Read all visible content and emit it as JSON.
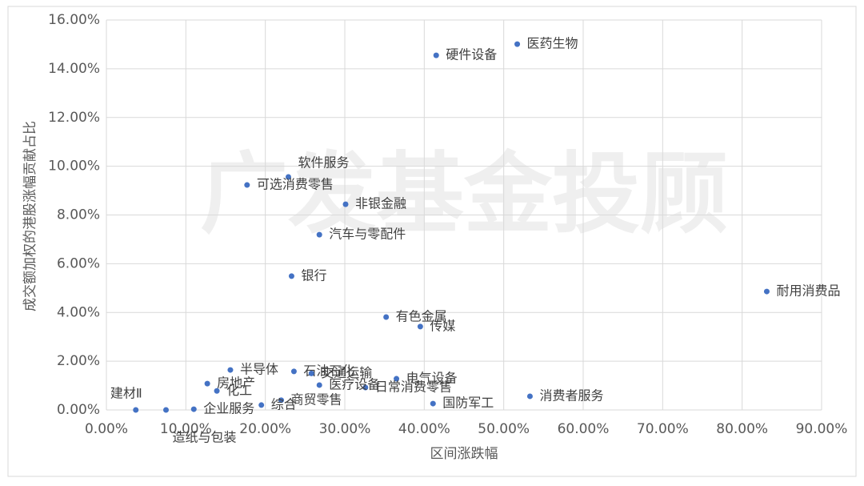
{
  "chart_data": {
    "type": "scatter",
    "watermark": "广发基金投顾",
    "x_label": "区间涨跌幅",
    "y_label": "成交额加权的港股涨幅贡献占比",
    "color": "#4472c4",
    "grid": true,
    "xlim": [
      0,
      90
    ],
    "ylim": [
      0,
      16
    ],
    "xticks": [
      {
        "value": 0,
        "label": "0.00%"
      },
      {
        "value": 10,
        "label": "10.00%"
      },
      {
        "value": 20,
        "label": "20.00%"
      },
      {
        "value": 30,
        "label": "30.00%"
      },
      {
        "value": 40,
        "label": "40.00%"
      },
      {
        "value": 50,
        "label": "50.00%"
      },
      {
        "value": 60,
        "label": "60.00%"
      },
      {
        "value": 70,
        "label": "70.00%"
      },
      {
        "value": 80,
        "label": "80.00%"
      },
      {
        "value": 90,
        "label": "90.00%"
      }
    ],
    "yticks": [
      {
        "value": 0,
        "label": "0.00%"
      },
      {
        "value": 2,
        "label": "2.00%"
      },
      {
        "value": 4,
        "label": "4.00%"
      },
      {
        "value": 6,
        "label": "6.00%"
      },
      {
        "value": 8,
        "label": "8.00%"
      },
      {
        "value": 10,
        "label": "10.00%"
      },
      {
        "value": 12,
        "label": "12.00%"
      },
      {
        "value": 14,
        "label": "14.00%"
      },
      {
        "value": 16,
        "label": "16.00%"
      }
    ],
    "labels": [
      "医药生物",
      "硬件设备",
      "软件服务",
      "可选消费零售",
      "非银金融",
      "汽车与零配件",
      "银行",
      "耐用消费品",
      "有色金属",
      "传媒",
      "半导体",
      "石油石化",
      "电气设备",
      "消费者服务",
      "国防军工",
      "房地产",
      "建材Ⅱ",
      "造纸与包装",
      "企业服务",
      "日常消费零售",
      "医疗设备",
      "交通运输",
      "化工",
      "商贸零售",
      "综合"
    ],
    "x": [
      51.7,
      41.5,
      22.9,
      17.7,
      30.1,
      26.8,
      23.3,
      83.1,
      35.2,
      39.5,
      15.6,
      23.6,
      36.5,
      53.3,
      41.1,
      12.7,
      3.7,
      7.5,
      11.0,
      32.6,
      26.8,
      25.8,
      13.9,
      22.0,
      19.5
    ],
    "y": [
      15.01,
      14.55,
      9.56,
      9.23,
      8.44,
      7.19,
      5.49,
      4.86,
      3.81,
      3.42,
      1.64,
      1.58,
      1.28,
      0.56,
      0.26,
      1.08,
      0.0,
      0.0,
      0.03,
      0.92,
      1.02,
      1.5,
      0.78,
      0.4,
      0.2
    ]
  }
}
